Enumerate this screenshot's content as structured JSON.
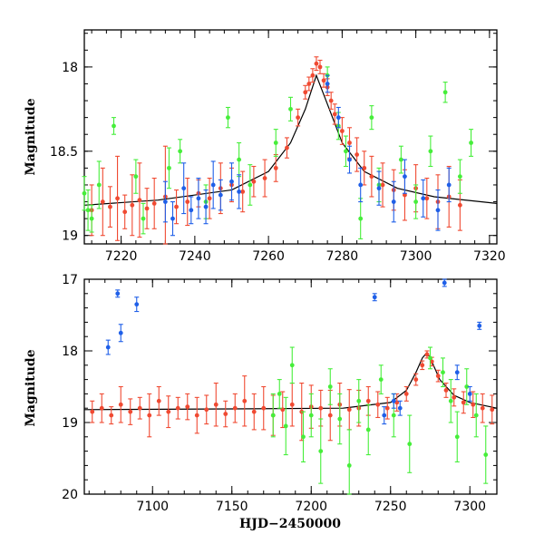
{
  "colors": {
    "red": "#f04a32",
    "green": "#46ee3a",
    "blue": "#1f5fe8",
    "model": "#000000"
  },
  "chart_data": [
    {
      "id": "top",
      "type": "scatter",
      "title": "",
      "xlabel": "",
      "ylabel": "Magnitude",
      "xlim": [
        7210,
        7322
      ],
      "ylim": [
        19.05,
        17.78
      ],
      "y_inverted": true,
      "x_ticks": [
        7220,
        7240,
        7260,
        7280,
        7300,
        7320
      ],
      "x_tick_labels": [
        "7220",
        "7240",
        "7260",
        "7280",
        "7300",
        "7320"
      ],
      "y_ticks": [
        18,
        18.5,
        19
      ],
      "y_tick_labels": [
        "18",
        "18.5",
        "19"
      ],
      "model_curve": {
        "x": [
          7210,
          7230,
          7250,
          7260,
          7266,
          7270,
          7273,
          7276,
          7280,
          7286,
          7295,
          7305,
          7322
        ],
        "y": [
          18.82,
          18.79,
          18.73,
          18.62,
          18.45,
          18.25,
          18.05,
          18.22,
          18.45,
          18.62,
          18.72,
          18.77,
          18.81
        ]
      },
      "series": [
        {
          "name": "red",
          "x": [
            7212,
            7215,
            7217,
            7219,
            7221,
            7223,
            7225,
            7227,
            7229,
            7232,
            7235,
            7238,
            7241,
            7244,
            7247,
            7250,
            7253,
            7256,
            7259,
            7262,
            7265,
            7268,
            7270,
            7271,
            7272,
            7273,
            7274,
            7275,
            7276,
            7277,
            7278,
            7280,
            7282,
            7284,
            7286,
            7288,
            7291,
            7294,
            7297,
            7300,
            7303,
            7306,
            7309,
            7312
          ],
          "y": [
            18.85,
            18.8,
            18.83,
            18.78,
            18.86,
            18.82,
            18.79,
            18.84,
            18.81,
            18.77,
            18.83,
            18.8,
            18.75,
            18.78,
            18.72,
            18.7,
            18.74,
            18.68,
            18.66,
            18.6,
            18.48,
            18.3,
            18.15,
            18.1,
            18.05,
            17.98,
            18.0,
            18.08,
            18.12,
            18.2,
            18.28,
            18.38,
            18.45,
            18.52,
            18.6,
            18.65,
            18.7,
            18.73,
            18.76,
            18.72,
            18.78,
            18.8,
            18.77,
            18.82
          ],
          "err": [
            0.15,
            0.2,
            0.12,
            0.25,
            0.1,
            0.18,
            0.22,
            0.12,
            0.15,
            0.3,
            0.1,
            0.14,
            0.08,
            0.12,
            0.15,
            0.1,
            0.12,
            0.09,
            0.11,
            0.08,
            0.06,
            0.05,
            0.04,
            0.04,
            0.04,
            0.04,
            0.04,
            0.04,
            0.05,
            0.05,
            0.06,
            0.08,
            0.09,
            0.1,
            0.1,
            0.12,
            0.13,
            0.12,
            0.15,
            0.14,
            0.12,
            0.16,
            0.18,
            0.15
          ]
        },
        {
          "name": "green",
          "x": [
            7210,
            7211,
            7212,
            7214,
            7218,
            7224,
            7226,
            7233,
            7236,
            7243,
            7249,
            7252,
            7255,
            7262,
            7266,
            7276,
            7279,
            7281,
            7285,
            7288,
            7290,
            7296,
            7300,
            7304,
            7308,
            7312,
            7315
          ],
          "y": [
            18.75,
            18.85,
            18.9,
            18.7,
            18.35,
            18.65,
            18.9,
            18.6,
            18.5,
            18.8,
            18.3,
            18.55,
            18.7,
            18.45,
            18.25,
            18.05,
            18.35,
            18.5,
            18.9,
            18.3,
            18.7,
            18.55,
            18.8,
            18.5,
            18.15,
            18.65,
            18.45
          ],
          "err": [
            0.1,
            0.12,
            0.08,
            0.14,
            0.05,
            0.1,
            0.09,
            0.12,
            0.07,
            0.1,
            0.06,
            0.1,
            0.12,
            0.08,
            0.07,
            0.05,
            0.08,
            0.09,
            0.12,
            0.07,
            0.1,
            0.08,
            0.1,
            0.09,
            0.06,
            0.1,
            0.08
          ]
        },
        {
          "name": "blue",
          "x": [
            7232,
            7234,
            7237,
            7239,
            7241,
            7243,
            7245,
            7247,
            7250,
            7252,
            7276,
            7279,
            7282,
            7285,
            7290,
            7294,
            7297,
            7302,
            7306,
            7309
          ],
          "y": [
            18.8,
            18.9,
            18.72,
            18.85,
            18.78,
            18.83,
            18.7,
            18.76,
            18.68,
            18.74,
            18.1,
            18.3,
            18.55,
            18.7,
            18.72,
            18.8,
            18.65,
            18.78,
            18.85,
            18.7
          ],
          "err": [
            0.12,
            0.1,
            0.15,
            0.08,
            0.12,
            0.1,
            0.14,
            0.09,
            0.11,
            0.1,
            0.05,
            0.06,
            0.08,
            0.1,
            0.1,
            0.12,
            0.1,
            0.11,
            0.12,
            0.1
          ]
        }
      ]
    },
    {
      "id": "bottom",
      "type": "scatter",
      "title": "",
      "xlabel": "HJD−2450000",
      "ylabel": "Magnitude",
      "xlim": [
        7057,
        7317
      ],
      "ylim": [
        20,
        17
      ],
      "y_inverted": true,
      "x_ticks": [
        7100,
        7150,
        7200,
        7250,
        7300
      ],
      "x_tick_labels": [
        "7100",
        "7150",
        "7200",
        "7250",
        "7300"
      ],
      "y_ticks": [
        17,
        18,
        19,
        20
      ],
      "y_tick_labels": [
        "17",
        "18",
        "19",
        "20"
      ],
      "model_curve": {
        "x": [
          7057,
          7150,
          7220,
          7250,
          7260,
          7266,
          7270,
          7273,
          7276,
          7281,
          7290,
          7300,
          7317
        ],
        "y": [
          18.82,
          18.81,
          18.8,
          18.72,
          18.55,
          18.3,
          18.1,
          18.02,
          18.15,
          18.4,
          18.62,
          18.72,
          18.8
        ]
      },
      "series": [
        {
          "name": "red",
          "x": [
            7062,
            7068,
            7074,
            7080,
            7086,
            7092,
            7098,
            7104,
            7110,
            7116,
            7122,
            7128,
            7134,
            7140,
            7146,
            7152,
            7158,
            7164,
            7170,
            7176,
            7182,
            7188,
            7194,
            7200,
            7206,
            7212,
            7218,
            7224,
            7230,
            7236,
            7242,
            7248,
            7254,
            7260,
            7266,
            7270,
            7273,
            7276,
            7280,
            7285,
            7290,
            7296,
            7302,
            7308,
            7314
          ],
          "y": [
            18.85,
            18.8,
            18.9,
            18.75,
            18.85,
            18.8,
            18.9,
            18.7,
            18.85,
            18.8,
            18.78,
            18.9,
            18.82,
            18.75,
            18.88,
            18.8,
            18.7,
            18.85,
            18.8,
            18.9,
            18.82,
            18.75,
            18.85,
            18.78,
            18.8,
            18.9,
            18.75,
            18.82,
            18.8,
            18.7,
            18.75,
            18.8,
            18.72,
            18.6,
            18.4,
            18.2,
            18.05,
            18.15,
            18.35,
            18.55,
            18.65,
            18.72,
            18.75,
            18.8,
            18.82
          ],
          "err": [
            0.15,
            0.2,
            0.12,
            0.25,
            0.18,
            0.15,
            0.3,
            0.2,
            0.22,
            0.15,
            0.18,
            0.25,
            0.2,
            0.3,
            0.18,
            0.2,
            0.35,
            0.25,
            0.3,
            0.28,
            0.25,
            0.3,
            0.4,
            0.3,
            0.25,
            0.35,
            0.3,
            0.28,
            0.25,
            0.2,
            0.18,
            0.15,
            0.12,
            0.1,
            0.08,
            0.06,
            0.05,
            0.06,
            0.08,
            0.1,
            0.12,
            0.15,
            0.18,
            0.2,
            0.2
          ]
        },
        {
          "name": "green",
          "x": [
            7176,
            7180,
            7184,
            7188,
            7195,
            7200,
            7206,
            7212,
            7218,
            7224,
            7230,
            7236,
            7244,
            7252,
            7262,
            7275,
            7283,
            7288,
            7292,
            7298,
            7304,
            7310
          ],
          "y": [
            18.9,
            18.6,
            19.05,
            18.2,
            19.2,
            18.9,
            19.4,
            18.5,
            18.95,
            19.6,
            18.7,
            19.1,
            18.4,
            18.9,
            19.3,
            18.1,
            18.3,
            18.7,
            19.2,
            18.5,
            18.9,
            19.45
          ],
          "err": [
            0.3,
            0.2,
            0.4,
            0.25,
            0.35,
            0.3,
            0.45,
            0.25,
            0.35,
            0.5,
            0.3,
            0.35,
            0.2,
            0.3,
            0.4,
            0.15,
            0.2,
            0.3,
            0.35,
            0.25,
            0.3,
            0.4
          ]
        },
        {
          "name": "blue",
          "x": [
            7072,
            7078,
            7080,
            7090,
            7240,
            7246,
            7252,
            7256,
            7284,
            7292,
            7300,
            7306
          ],
          "y": [
            17.95,
            17.2,
            17.75,
            17.35,
            17.25,
            18.9,
            18.7,
            18.8,
            17.05,
            18.3,
            18.6,
            17.65
          ],
          "err": [
            0.1,
            0.05,
            0.12,
            0.1,
            0.05,
            0.12,
            0.1,
            0.1,
            0.05,
            0.1,
            0.1,
            0.05
          ]
        }
      ]
    }
  ]
}
